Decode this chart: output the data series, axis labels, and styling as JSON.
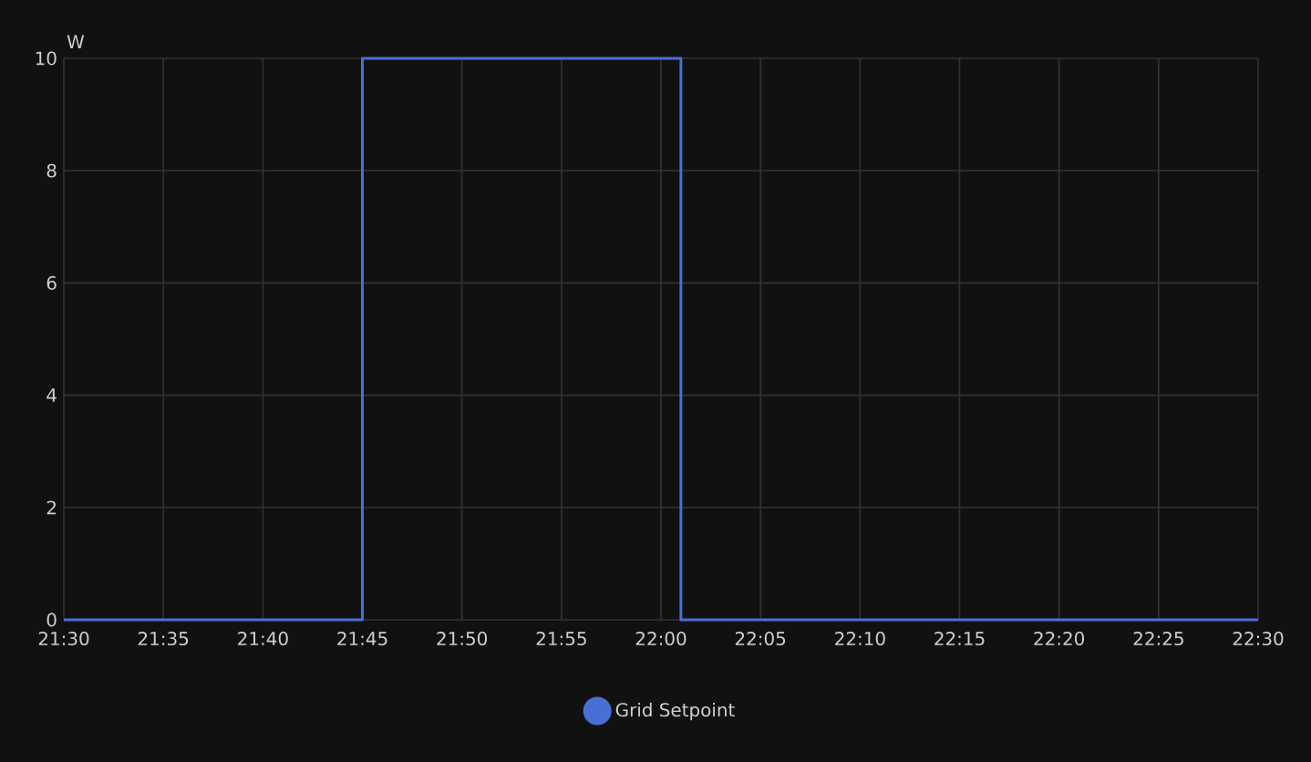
{
  "chart_data": {
    "type": "step",
    "ylabel": "W",
    "x": [
      21.5,
      21.75,
      22.0167,
      22.5
    ],
    "series": [
      {
        "name": "Grid Setpoint",
        "color": "#4a6fd4",
        "values": [
          0,
          10,
          0,
          0
        ]
      }
    ],
    "xlim": [
      21.5,
      22.5
    ],
    "xticks": [
      {
        "value": 21.5,
        "label": "21:30"
      },
      {
        "value": 21.5833,
        "label": "21:35"
      },
      {
        "value": 21.6667,
        "label": "21:40"
      },
      {
        "value": 21.75,
        "label": "21:45"
      },
      {
        "value": 21.8333,
        "label": "21:50"
      },
      {
        "value": 21.9167,
        "label": "21:55"
      },
      {
        "value": 22.0,
        "label": "22:00"
      },
      {
        "value": 22.0833,
        "label": "22:05"
      },
      {
        "value": 22.1667,
        "label": "22:10"
      },
      {
        "value": 22.25,
        "label": "22:15"
      },
      {
        "value": 22.3333,
        "label": "22:20"
      },
      {
        "value": 22.4167,
        "label": "22:25"
      },
      {
        "value": 22.5,
        "label": "22:30"
      }
    ],
    "ylim": [
      0,
      10
    ],
    "yticks": [
      0,
      2,
      4,
      6,
      8,
      10
    ],
    "grid": true,
    "legend": "bottom",
    "marker": "none",
    "line_style": "solid"
  }
}
